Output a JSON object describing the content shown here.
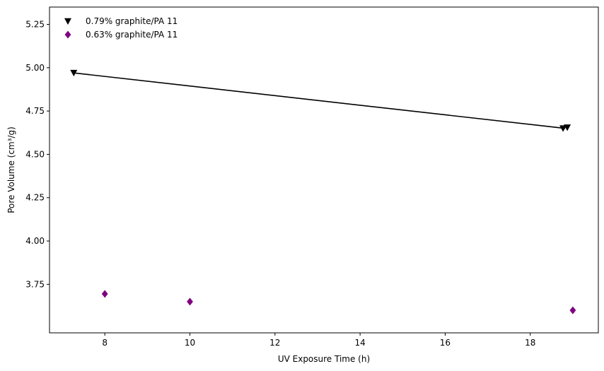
{
  "chart_data": {
    "type": "scatter",
    "title": "",
    "xlabel": "UV Exposure Time (h)",
    "ylabel": "Pore Volume (cm³/g)",
    "xlim": [
      6.7,
      19.6
    ],
    "ylim": [
      3.47,
      5.35
    ],
    "xticks": [
      8,
      10,
      12,
      14,
      16,
      18
    ],
    "yticks": [
      3.75,
      4.0,
      4.25,
      4.5,
      4.75,
      5.0,
      5.25
    ],
    "xtick_labels": [
      "8",
      "10",
      "12",
      "14",
      "16",
      "18"
    ],
    "ytick_labels": [
      "3.75",
      "4.00",
      "4.25",
      "4.50",
      "4.75",
      "5.00",
      "5.25"
    ],
    "grid": false,
    "legend_position": "top-left",
    "series": [
      {
        "name": "0.79% graphite/PA 11",
        "marker": "triangle-down",
        "color": "#000000",
        "x": [
          7.27,
          18.77,
          18.87
        ],
        "y": [
          4.97,
          4.65,
          4.655
        ]
      },
      {
        "name": "0.63% graphite/PA 11",
        "marker": "diamond",
        "color": "#800080",
        "x": [
          8,
          10,
          19
        ],
        "y": [
          3.695,
          3.65,
          3.6
        ]
      }
    ],
    "lines": [
      {
        "name": "trend-line-0.79",
        "color": "#000000",
        "x": [
          7.27,
          18.82
        ],
        "y": [
          4.97,
          4.65
        ]
      }
    ]
  }
}
